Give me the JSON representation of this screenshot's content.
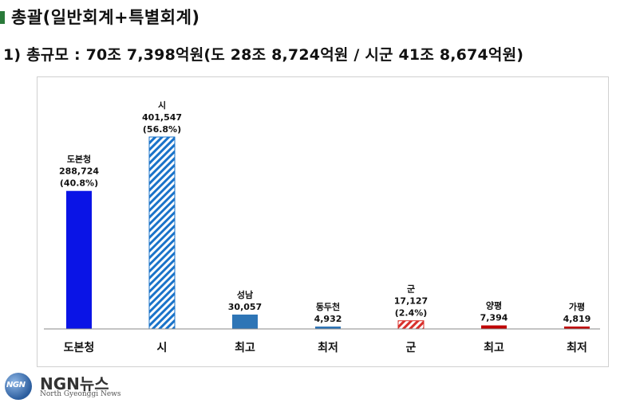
{
  "header": {
    "title": "총괄(일반회계+특별회계)",
    "subtitle": "1) 총규모 : 70조 7,398억원(도 28조 8,724억원 / 시군 41조 8,674억원)"
  },
  "logo": {
    "badge_text": "NGN",
    "name": "NGN뉴스",
    "sub": "North Gyeonggi News"
  },
  "colors": {
    "blue": "#0a14e6",
    "hatch_blue": "#1a73c9",
    "steel_blue": "#2e75b6",
    "hatch_red": "#d9302c",
    "red": "#c00000"
  },
  "chart_data": {
    "type": "bar",
    "title": "",
    "xlabel": "",
    "ylabel": "",
    "ylim": [
      0,
      420000
    ],
    "grid": false,
    "legend": "none",
    "categories": [
      "도본청",
      "시",
      "최고",
      "최저",
      "군",
      "최고",
      "최저"
    ],
    "values": [
      288724,
      401547,
      30057,
      4932,
      17127,
      7394,
      4819
    ],
    "bar_labels": [
      [
        "도본청",
        "288,724",
        "(40.8%)"
      ],
      [
        "시",
        "401,547",
        "(56.8%)"
      ],
      [
        "성남",
        "30,057"
      ],
      [
        "동두천",
        "4,932"
      ],
      [
        "군",
        "17,127",
        "(2.4%)"
      ],
      [
        "양평",
        "7,394"
      ],
      [
        "가평",
        "4,819"
      ]
    ],
    "bar_styles": [
      "solid-blue",
      "hatch-blue",
      "solid-steel",
      "solid-steel",
      "hatch-red",
      "solid-red",
      "solid-red"
    ]
  }
}
